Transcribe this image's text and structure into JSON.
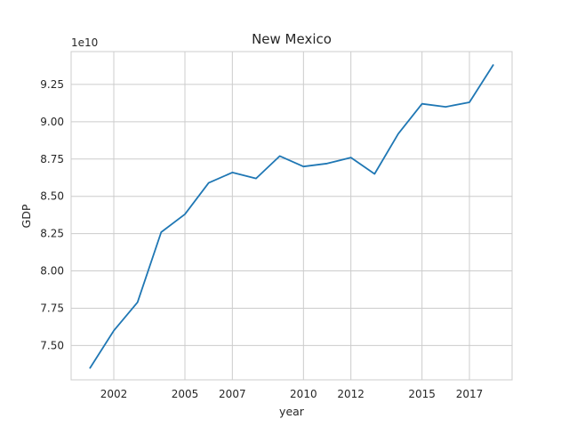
{
  "chart_data": {
    "type": "line",
    "title": "New Mexico",
    "xlabel": "year",
    "ylabel": "GDP",
    "y_offset_label": "1e10",
    "x_ticks": [
      2002,
      2005,
      2007,
      2010,
      2012,
      2015,
      2017
    ],
    "x_tick_labels": [
      "2002",
      "2005",
      "2007",
      "2010",
      "2012",
      "2015",
      "2017"
    ],
    "y_ticks": [
      7.5,
      7.75,
      8.0,
      8.25,
      8.5,
      8.75,
      9.0,
      9.25
    ],
    "y_tick_labels": [
      "7.50",
      "7.75",
      "8.00",
      "8.25",
      "8.50",
      "8.75",
      "9.00",
      "9.25"
    ],
    "xlim": [
      2000.2,
      2018.8
    ],
    "ylim": [
      7.27,
      9.47
    ],
    "grid": true,
    "line_color": "#1f77b4",
    "series": [
      {
        "x": [
          2001,
          2002,
          2003,
          2004,
          2005,
          2006,
          2007,
          2008,
          2009,
          2010,
          2011,
          2012,
          2013,
          2014,
          2015,
          2016,
          2017,
          2018
        ],
        "values": [
          7.35,
          7.6,
          7.79,
          8.26,
          8.38,
          8.59,
          8.66,
          8.62,
          8.77,
          8.7,
          8.72,
          8.76,
          8.65,
          8.92,
          9.12,
          9.1,
          9.13,
          9.38
        ]
      }
    ]
  }
}
